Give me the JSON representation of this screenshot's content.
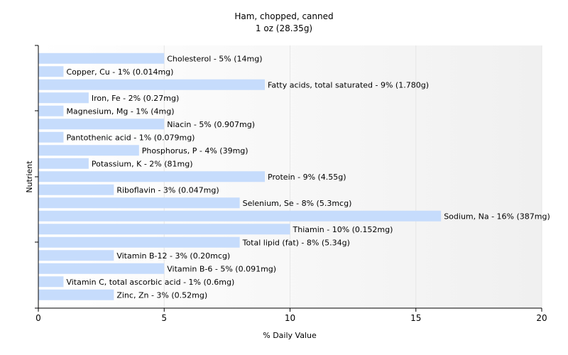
{
  "chart_data": {
    "type": "bar",
    "orientation": "horizontal",
    "title": "Ham, chopped, canned",
    "subtitle": "1 oz (28.35g)",
    "xlabel": "% Daily Value",
    "ylabel": "Nutrient",
    "xlim": [
      0,
      20
    ],
    "xticks": [
      0,
      5,
      10,
      15,
      20
    ],
    "grid": "vertical",
    "colors": {
      "bar": "#c6dcfc",
      "plot_background_left": "#ffffff",
      "plot_background_right": "#f0f0f0",
      "grid": "#e6e6e6",
      "axis": "#000000"
    },
    "categories": [
      "Cholesterol",
      "Copper, Cu",
      "Fatty acids, total saturated",
      "Iron, Fe",
      "Magnesium, Mg",
      "Niacin",
      "Pantothenic acid",
      "Phosphorus, P",
      "Potassium, K",
      "Protein",
      "Riboflavin",
      "Selenium, Se",
      "Sodium, Na",
      "Thiamin",
      "Total lipid (fat)",
      "Vitamin B-12",
      "Vitamin B-6",
      "Vitamin C, total ascorbic acid",
      "Zinc, Zn"
    ],
    "values": [
      5,
      1,
      9,
      2,
      1,
      5,
      1,
      4,
      2,
      9,
      3,
      8,
      16,
      10,
      8,
      3,
      5,
      1,
      3
    ],
    "labels": [
      "Cholesterol - 5% (14mg)",
      "Copper, Cu - 1% (0.014mg)",
      "Fatty acids, total saturated - 9% (1.780g)",
      "Iron, Fe - 2% (0.27mg)",
      "Magnesium, Mg - 1% (4mg)",
      "Niacin - 5% (0.907mg)",
      "Pantothenic acid - 1% (0.079mg)",
      "Phosphorus, P - 4% (39mg)",
      "Potassium, K - 2% (81mg)",
      "Protein - 9% (4.55g)",
      "Riboflavin - 3% (0.047mg)",
      "Selenium, Se - 8% (5.3mcg)",
      "Sodium, Na - 16% (387mg)",
      "Thiamin - 10% (0.152mg)",
      "Total lipid (fat) - 8% (5.34g)",
      "Vitamin B-12 - 3% (0.20mcg)",
      "Vitamin B-6 - 5% (0.091mg)",
      "Vitamin C, total ascorbic acid - 1% (0.6mg)",
      "Zinc, Zn - 3% (0.52mg)"
    ]
  }
}
